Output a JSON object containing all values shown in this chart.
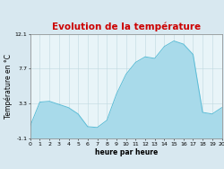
{
  "title": "Evolution de la température",
  "title_color": "#cc0000",
  "xlabel": "heure par heure",
  "ylabel": "Température en °C",
  "background_color": "#d8e8f0",
  "plot_bg_color": "#e8f4f8",
  "line_color": "#5bbcd6",
  "fill_color": "#a8daea",
  "ylim": [
    -1.1,
    12.1
  ],
  "yticks": [
    -1.1,
    3.3,
    7.7,
    12.1
  ],
  "xlim": [
    0,
    20
  ],
  "hours": [
    0,
    1,
    2,
    3,
    4,
    5,
    6,
    7,
    8,
    9,
    10,
    11,
    12,
    13,
    14,
    15,
    16,
    17,
    18,
    19,
    20
  ],
  "temperatures": [
    0.5,
    3.5,
    3.6,
    3.2,
    2.8,
    2.0,
    0.4,
    0.3,
    1.2,
    4.5,
    7.0,
    8.5,
    9.2,
    9.0,
    10.5,
    11.2,
    10.8,
    9.5,
    2.2,
    2.0,
    2.8
  ],
  "grid_color": "#c0d8e0",
  "tick_label_fontsize": 4.5,
  "axis_label_fontsize": 5.5,
  "title_fontsize": 7.5
}
